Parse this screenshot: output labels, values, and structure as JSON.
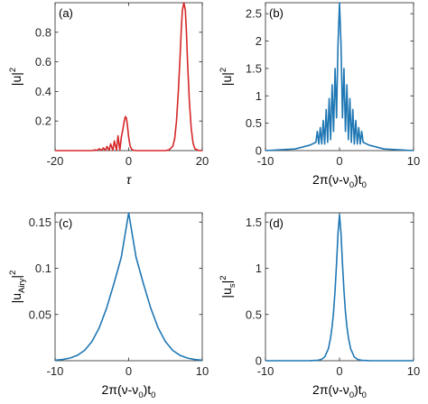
{
  "chart_data": [
    {
      "panel": "(a)",
      "type": "line",
      "xlabel": "τ",
      "ylabel": "|u|",
      "ylabel_sup": "2",
      "xlim": [
        -20,
        20
      ],
      "ylim": [
        0,
        1.0
      ],
      "xticks": [
        -20,
        0,
        20
      ],
      "yticks": [
        0.2,
        0.4,
        0.6,
        0.8
      ],
      "grid": false,
      "color": "#d62728",
      "series": [
        {
          "x": [
            -20,
            -10,
            -9.2,
            -8.5,
            -8,
            -7.3,
            -6.9,
            -6.3,
            -5.9,
            -5.3,
            -4.9,
            -4.3,
            -3.9,
            -3.3,
            -2.9,
            -2.4,
            -2,
            -1.6,
            -1.2,
            -0.9,
            -0.6,
            -0.3,
            0,
            0.4,
            0.8,
            1.2,
            2,
            4,
            8,
            10,
            11,
            12,
            12.5,
            13,
            13.5,
            14,
            14.3,
            14.6,
            15,
            15.4,
            15.7,
            16,
            16.5,
            17,
            17.5,
            18,
            19,
            20
          ],
          "y": [
            0,
            0,
            0.004,
            0.002,
            0.012,
            0.002,
            0.018,
            0.002,
            0.028,
            0.002,
            0.045,
            0.002,
            0.065,
            0.003,
            0.1,
            0.003,
            0.09,
            0.14,
            0.2,
            0.23,
            0.22,
            0.16,
            0.09,
            0.03,
            0.01,
            0.003,
            0,
            0,
            0,
            0,
            0.005,
            0.03,
            0.08,
            0.2,
            0.4,
            0.65,
            0.82,
            0.95,
            1.0,
            0.95,
            0.8,
            0.6,
            0.33,
            0.15,
            0.05,
            0.012,
            0.001,
            0
          ]
        }
      ]
    },
    {
      "panel": "(b)",
      "type": "line",
      "xlabel": "2π(ν-ν",
      "xlabel_sub": "0",
      "xlabel_suffix": ")t",
      "xlabel_sub2": "0",
      "ylabel": "|u|",
      "ylabel_sup": "2",
      "xlim": [
        -10,
        10
      ],
      "ylim": [
        0,
        2.7
      ],
      "xticks": [
        -10,
        0,
        10
      ],
      "yticks": [
        0,
        0.5,
        1,
        1.5,
        2,
        2.5
      ],
      "grid": false,
      "color": "#1f77b4",
      "series": [
        {
          "x": [
            -10,
            -6,
            -4,
            -3.2,
            -3,
            -2.8,
            -2.6,
            -2.4,
            -2.2,
            -2.0,
            -1.8,
            -1.6,
            -1.4,
            -1.2,
            -1.0,
            -0.8,
            -0.6,
            -0.4,
            -0.2,
            0,
            0.2,
            0.4,
            0.6,
            0.8,
            1.0,
            1.2,
            1.4,
            1.6,
            1.8,
            2.0,
            2.2,
            2.4,
            2.6,
            2.8,
            3.0,
            3.2,
            4,
            6,
            10
          ],
          "y": [
            0,
            0.03,
            0.1,
            0.15,
            0.35,
            0.12,
            0.42,
            0.12,
            0.55,
            0.12,
            0.75,
            0.15,
            0.95,
            0.2,
            1.2,
            0.35,
            1.5,
            0.6,
            1.95,
            2.7,
            1.95,
            0.6,
            1.5,
            0.35,
            1.2,
            0.2,
            0.95,
            0.15,
            0.75,
            0.12,
            0.55,
            0.12,
            0.42,
            0.12,
            0.35,
            0.15,
            0.1,
            0.03,
            0
          ]
        }
      ]
    },
    {
      "panel": "(c)",
      "type": "line",
      "xlabel": "2π(ν-ν",
      "xlabel_sub": "0",
      "xlabel_suffix": ")t",
      "xlabel_sub2": "0",
      "ylabel": "|u",
      "ylabel_sub": "Airy",
      "ylabel_end": "|",
      "ylabel_sup": "2",
      "xlim": [
        -10,
        10
      ],
      "ylim": [
        0,
        0.16
      ],
      "xticks": [
        -10,
        0,
        10
      ],
      "yticks": [
        0.05,
        0.1,
        0.15
      ],
      "grid": false,
      "color": "#1f77b4",
      "series": [
        {
          "x": [
            -10,
            -9,
            -8,
            -7,
            -6,
            -5,
            -4,
            -3,
            -2,
            -1,
            0,
            1,
            2,
            3,
            4,
            5,
            6,
            7,
            8,
            9,
            10
          ],
          "y": [
            0.0006,
            0.0013,
            0.0028,
            0.0057,
            0.0111,
            0.0206,
            0.0356,
            0.0569,
            0.0834,
            0.1121,
            0.16,
            0.1121,
            0.0834,
            0.0569,
            0.0356,
            0.0206,
            0.0111,
            0.0057,
            0.0028,
            0.0013,
            0.0006
          ]
        }
      ]
    },
    {
      "panel": "(d)",
      "type": "line",
      "xlabel": "2π(ν-ν",
      "xlabel_sub": "0",
      "xlabel_suffix": ")t",
      "xlabel_sub2": "0",
      "ylabel": "|u",
      "ylabel_sub": "s",
      "ylabel_end": "|",
      "ylabel_sup": "2",
      "xlim": [
        -10,
        10
      ],
      "ylim": [
        0,
        1.6
      ],
      "xticks": [
        -10,
        0,
        10
      ],
      "yticks": [
        0,
        0.5,
        1,
        1.5
      ],
      "grid": false,
      "color": "#1f77b4",
      "series": [
        {
          "x": [
            -10,
            -6,
            -4,
            -3,
            -2.5,
            -2,
            -1.5,
            -1.2,
            -1,
            -0.8,
            -0.6,
            -0.4,
            -0.2,
            0,
            0.2,
            0.4,
            0.6,
            0.8,
            1,
            1.2,
            1.5,
            2,
            2.5,
            3,
            4,
            6,
            10
          ],
          "y": [
            0,
            0,
            0.0005,
            0.004,
            0.012,
            0.04,
            0.13,
            0.25,
            0.37,
            0.53,
            0.76,
            1.05,
            1.38,
            1.58,
            1.38,
            1.05,
            0.76,
            0.53,
            0.37,
            0.25,
            0.13,
            0.04,
            0.012,
            0.004,
            0.0005,
            0,
            0
          ]
        }
      ]
    }
  ]
}
